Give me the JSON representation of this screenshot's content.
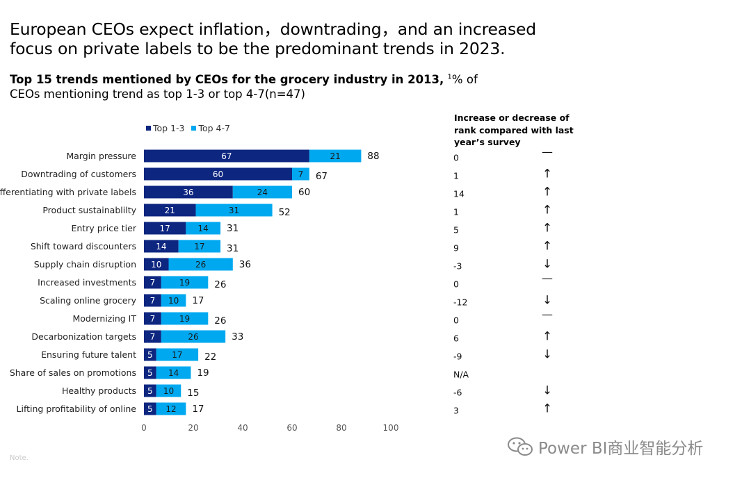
{
  "headline": "European CEOs expect inflation，downtrading，and an increased focus on private labels to be the predominant trends in 2023.",
  "subtitle": {
    "bold": "Top 15 trends mentioned by CEOs for the grocery industry in 2013,",
    "sup": "1",
    "rest": "% of CEOs mentioning trend as top 1-3 or top 4-7(n=47)"
  },
  "rank_header": "Increase or decrease of rank compared with last year’s  survey",
  "watermark": "Power BI商业智能分析",
  "note": "Note.",
  "colors": {
    "top13": "#0d2680",
    "top47": "#00a8f0",
    "text": "#000000",
    "axis": "#555555"
  },
  "chart_data": {
    "type": "bar",
    "orientation": "horizontal",
    "stacked": true,
    "categories": [
      "Margin pressure",
      "Downtrading of customers",
      "Differentiating with private labels",
      "Product sustainablilty",
      "Entry price tier",
      "Shift toward discounters",
      "Supply chain disruption",
      "Increased investments",
      "Scaling online grocery",
      "Modernizing IT",
      "Decarbonization targets",
      "Ensuring future talent",
      "Share of sales on promotions",
      "Healthy products",
      "Lifting profitability of online"
    ],
    "series": [
      {
        "name": "Top 1-3",
        "values": [
          67,
          60,
          36,
          21,
          17,
          14,
          10,
          7,
          7,
          7,
          7,
          5,
          5,
          5,
          5
        ]
      },
      {
        "name": "Top 4-7",
        "values": [
          21,
          7,
          24,
          31,
          14,
          17,
          26,
          19,
          10,
          19,
          26,
          17,
          14,
          10,
          12
        ]
      }
    ],
    "totals": [
      88,
      67,
      60,
      52,
      31,
      31,
      36,
      26,
      17,
      26,
      33,
      22,
      19,
      15,
      17
    ],
    "rank_change": [
      "0",
      "1",
      "14",
      "1",
      "5",
      "9",
      "-3",
      "0",
      "-12",
      "0",
      "6",
      "-9",
      "N/A",
      "-6",
      "3"
    ],
    "rank_arrow": [
      "—",
      "↑",
      "↑",
      "↑",
      "↑",
      "↑",
      "↓",
      "—",
      "↓",
      "—",
      "↑",
      "↓",
      "",
      "↓",
      "↑"
    ],
    "xlim": [
      0,
      100
    ],
    "xticks": [
      0,
      20,
      40,
      60,
      80,
      100
    ],
    "legend_position": "top-left",
    "grid": false
  }
}
